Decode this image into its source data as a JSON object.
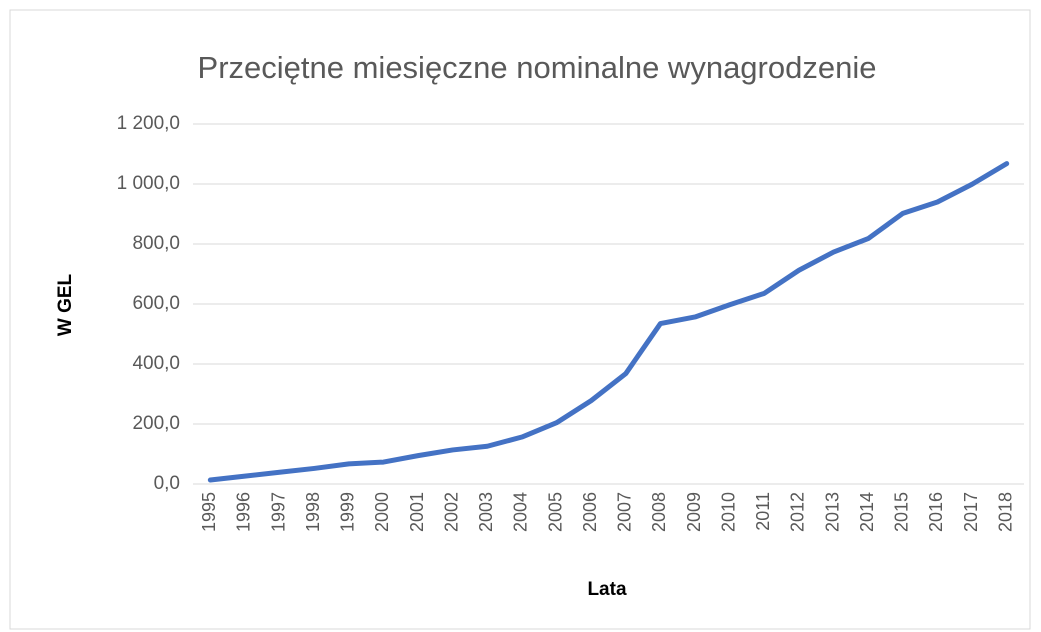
{
  "chart_data": {
    "type": "line",
    "title": "Przeciętne miesięczne nominalne wynagrodzenie",
    "x_label": "Lata",
    "y_label": "W GEL",
    "categories": [
      "1995",
      "1996",
      "1997",
      "1998",
      "1999",
      "2000",
      "2001",
      "2002",
      "2003",
      "2004",
      "2005",
      "2006",
      "2007",
      "2008",
      "2009",
      "2010",
      "2011",
      "2012",
      "2013",
      "2014",
      "2015",
      "2016",
      "2017",
      "2018"
    ],
    "series": [
      {
        "name": "W GEL",
        "color": "#4472c4",
        "values": [
          13.3,
          26.4,
          39.1,
          51.9,
          67.2,
          73.1,
          94.6,
          113.5,
          125.9,
          156.6,
          204.2,
          277.9,
          368.1,
          534.9,
          556.8,
          597.6,
          635.5,
          712.5,
          773.1,
          818.0,
          902.0,
          940.0,
          999.1,
          1068.0
        ]
      }
    ],
    "ylim": [
      0,
      1200
    ],
    "yticks": [
      {
        "value": 0,
        "label": "0,0"
      },
      {
        "value": 200,
        "label": "200,0"
      },
      {
        "value": 400,
        "label": "400,0"
      },
      {
        "value": 600,
        "label": "600,0"
      },
      {
        "value": 800,
        "label": "800,0"
      },
      {
        "value": 1000,
        "label": "1 000,0"
      },
      {
        "value": 1200,
        "label": "1 200,0"
      }
    ],
    "grid": true
  }
}
